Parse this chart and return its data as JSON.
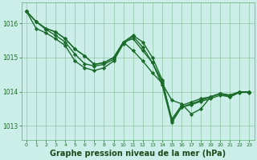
{
  "background_color": "#cceee8",
  "grid_color": "#66aa77",
  "line_color": "#1a6b2a",
  "marker": "D",
  "markersize": 2.2,
  "linewidth": 1.0,
  "title": "Graphe pression niveau de la mer (hPa)",
  "title_color": "#1a4a1a",
  "title_fontsize": 7.0,
  "xlim": [
    -0.5,
    23.5
  ],
  "ylim": [
    1012.6,
    1016.6
  ],
  "yticks": [
    1013,
    1014,
    1015,
    1016
  ],
  "xticks": [
    0,
    1,
    2,
    3,
    4,
    5,
    6,
    7,
    8,
    9,
    10,
    11,
    12,
    13,
    14,
    15,
    16,
    17,
    18,
    19,
    20,
    21,
    22,
    23
  ],
  "series": [
    [
      1016.35,
      1016.05,
      1015.85,
      1015.75,
      1015.55,
      1015.25,
      1015.05,
      1014.8,
      1014.85,
      1015.0,
      1015.45,
      1015.2,
      1014.9,
      1014.55,
      1014.25,
      1013.75,
      1013.65,
      1013.35,
      1013.5,
      1013.85,
      1013.95,
      1013.85,
      1014.0,
      1014.0
    ],
    [
      1016.35,
      1016.05,
      1015.85,
      1015.75,
      1015.55,
      1015.25,
      1015.05,
      1014.8,
      1014.85,
      1015.0,
      1015.45,
      1015.55,
      1015.2,
      1014.85,
      1014.3,
      1013.2,
      1013.6,
      1013.7,
      1013.8,
      1013.85,
      1013.95,
      1013.9,
      1014.0,
      1014.0
    ],
    [
      1016.35,
      1016.05,
      1015.82,
      1015.65,
      1015.45,
      1015.1,
      1014.82,
      1014.75,
      1014.8,
      1014.95,
      1015.45,
      1015.65,
      1015.45,
      1015.0,
      1014.35,
      1013.15,
      1013.55,
      1013.65,
      1013.75,
      1013.85,
      1013.95,
      1013.9,
      1014.0,
      1014.0
    ],
    [
      1016.35,
      1015.85,
      1015.72,
      1015.55,
      1015.35,
      1014.9,
      1014.7,
      1014.62,
      1014.7,
      1014.9,
      1015.4,
      1015.62,
      1015.3,
      1014.85,
      1014.2,
      1013.1,
      1013.55,
      1013.62,
      1013.72,
      1013.8,
      1013.9,
      1013.85,
      1013.98,
      1013.98
    ]
  ]
}
